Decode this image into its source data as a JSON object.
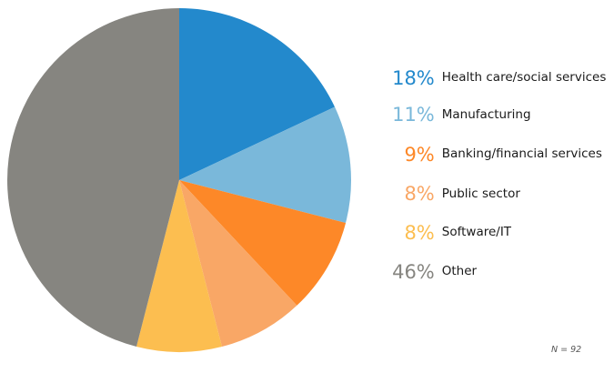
{
  "chart_data": {
    "type": "pie",
    "title": "",
    "slices": [
      {
        "pct_label": "18%",
        "label": "Health care/social services",
        "value": 18,
        "color": "#2389cc"
      },
      {
        "pct_label": "11%",
        "label": "Manufacturing",
        "value": 11,
        "color": "#7ab8da"
      },
      {
        "pct_label": "9%",
        "label": "Banking/financial services",
        "value": 9,
        "color": "#fd8828"
      },
      {
        "pct_label": "8%",
        "label": "Public sector",
        "value": 8,
        "color": "#f9a766"
      },
      {
        "pct_label": "8%",
        "label": "Software/IT",
        "value": 8,
        "color": "#fcbe50"
      },
      {
        "pct_label": "46%",
        "label": "Other",
        "value": 46,
        "color": "#868580"
      }
    ],
    "sample_note": "N = 92",
    "legend_position": "right"
  }
}
